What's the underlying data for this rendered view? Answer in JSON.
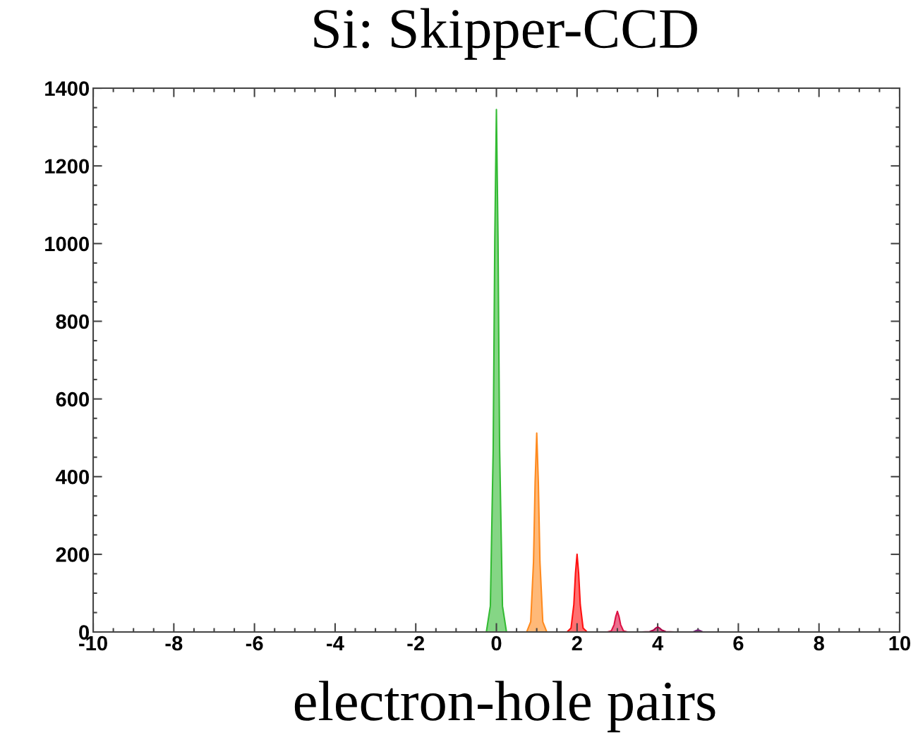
{
  "chart_data": {
    "type": "area",
    "title": "Si: Skipper-CCD",
    "xlabel": "electron-hole pairs",
    "xlim": [
      -10,
      10
    ],
    "xticks": [
      -10,
      -8,
      -6,
      -4,
      -2,
      0,
      2,
      4,
      6,
      8,
      10
    ],
    "ylim": [
      0,
      1400
    ],
    "yticks": [
      0,
      200,
      400,
      600,
      800,
      1000,
      1200,
      1400
    ],
    "grid": false,
    "legend": false,
    "series": [
      {
        "color": "#33bb33",
        "x": [
          -0.25,
          -0.15,
          -0.08,
          -0.04,
          0,
          0.04,
          0.08,
          0.15,
          0.25
        ],
        "values": [
          0,
          67,
          470,
          1010,
          1345,
          1010,
          470,
          67,
          0
        ]
      },
      {
        "color": "#ff8a1e",
        "x": [
          0.75,
          0.85,
          0.92,
          0.96,
          1,
          1.04,
          1.08,
          1.15,
          1.25
        ],
        "values": [
          0,
          26,
          180,
          385,
          512,
          385,
          180,
          26,
          0
        ]
      },
      {
        "color": "#ff1010",
        "x": [
          1.75,
          1.85,
          1.92,
          1.96,
          2,
          2.04,
          2.08,
          2.15,
          2.25
        ],
        "values": [
          0,
          10,
          70,
          150,
          200,
          150,
          70,
          10,
          0
        ]
      },
      {
        "color": "#dd1144",
        "x": [
          2.75,
          2.85,
          2.92,
          2.96,
          3,
          3.04,
          3.08,
          3.15,
          3.25
        ],
        "values": [
          0,
          3,
          19,
          40,
          53,
          40,
          19,
          3,
          0
        ]
      },
      {
        "color": "#aa0044",
        "x": [
          3.6,
          3.8,
          3.9,
          3.95,
          4,
          4.05,
          4.1,
          4.2,
          4.4
        ],
        "values": [
          0,
          1,
          5,
          10,
          13,
          10,
          5,
          1,
          0
        ]
      },
      {
        "color": "#772277",
        "x": [
          4.8,
          4.88,
          4.92,
          4.96,
          5,
          5.04,
          5.08,
          5.12,
          5.2
        ],
        "values": [
          0,
          0,
          2,
          4,
          5,
          4,
          2,
          0,
          0
        ]
      }
    ]
  }
}
